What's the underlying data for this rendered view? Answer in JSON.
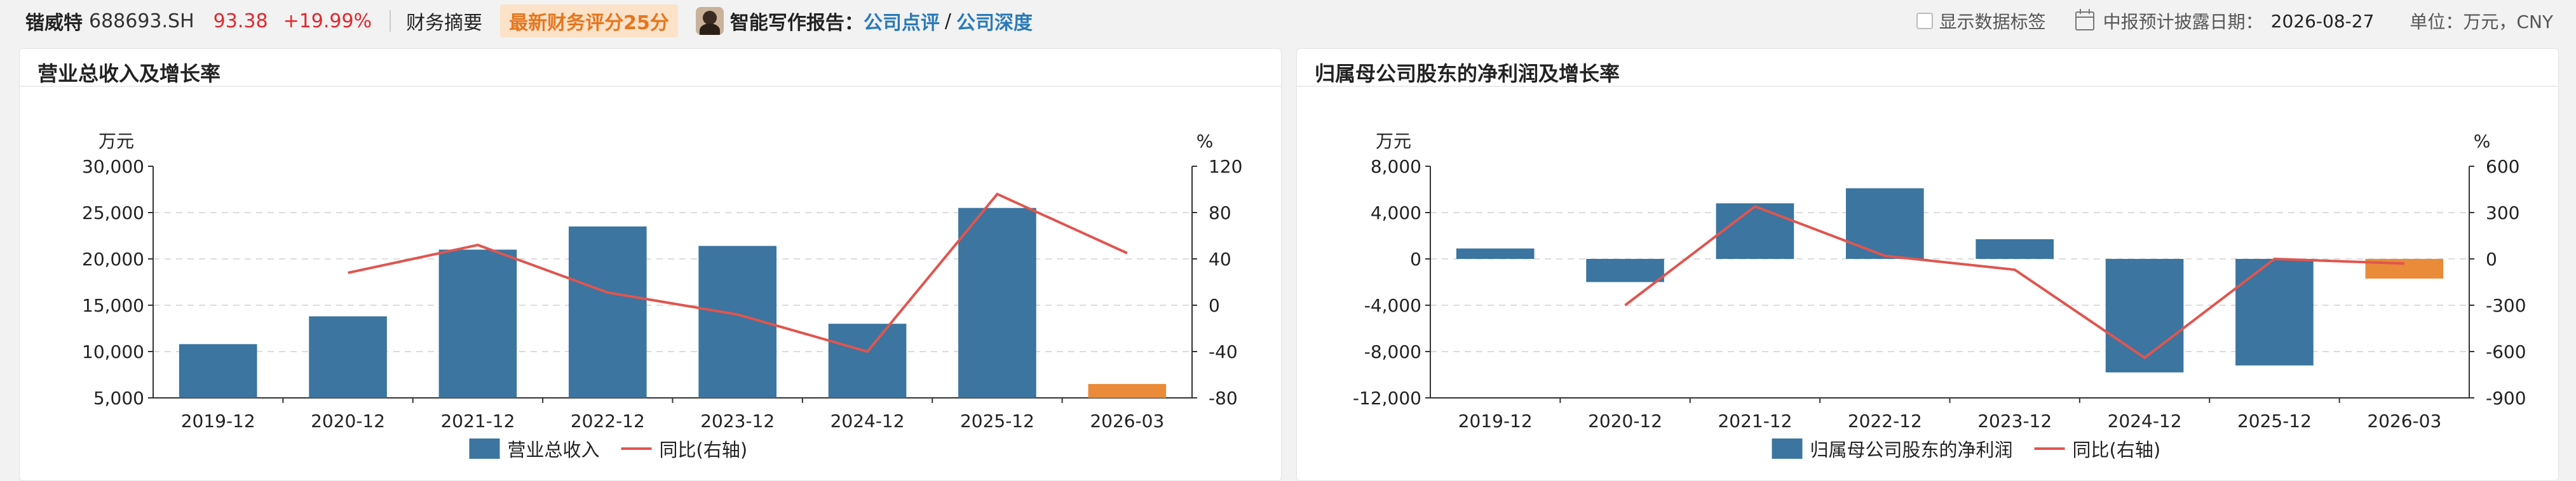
{
  "header": {
    "stock_name": "锴威特",
    "stock_code": "688693.SH",
    "price": "93.38",
    "change_pct": "+19.99%",
    "summary_label": "财务摘要",
    "score_badge": "最新财务评分25分",
    "report_label": "智能写作报告：",
    "link_review": "公司点评",
    "link_sep": "/",
    "link_depth": "公司深度",
    "show_labels": "显示数据标签",
    "disclosure_label": "中报预计披露日期：",
    "disclosure_date": "2026-08-27",
    "unit_label": "单位：万元，CNY"
  },
  "colors": {
    "bar": "#3b75a0",
    "bar_latest": "#e98b38",
    "line": "#e0554f",
    "price_up": "#e0282e"
  },
  "chart_data": [
    {
      "type": "bar",
      "title": "营业总收入及增长率",
      "categories": [
        "2019-12",
        "2020-12",
        "2021-12",
        "2022-12",
        "2023-12",
        "2024-12",
        "2025-12",
        "2026-03"
      ],
      "series": [
        {
          "name": "营业总收入",
          "axis": "left",
          "values": [
            10800,
            13800,
            21000,
            23500,
            21400,
            13000,
            25500,
            6500
          ]
        },
        {
          "name": "同比(右轴)",
          "axis": "right",
          "type": "line",
          "values": [
            null,
            28,
            52,
            11,
            -8,
            -40,
            96,
            45
          ]
        }
      ],
      "ylabel_left": "万元",
      "ylabel_right": "%",
      "ylim_left": [
        5000,
        30000
      ],
      "yticks_left": [
        "5,000",
        "10,000",
        "15,000",
        "20,000",
        "25,000",
        "30,000"
      ],
      "ylim_right": [
        -80,
        120
      ],
      "yticks_right": [
        "-80",
        "-40",
        "0",
        "40",
        "80",
        "120"
      ],
      "grid": true,
      "legend": "bottom"
    },
    {
      "type": "bar",
      "title": "归属母公司股东的净利润及增长率",
      "categories": [
        "2019-12",
        "2020-12",
        "2021-12",
        "2022-12",
        "2023-12",
        "2024-12",
        "2025-12",
        "2026-03"
      ],
      "series": [
        {
          "name": "归属母公司股东的净利润",
          "axis": "left",
          "values": [
            900,
            -2000,
            4800,
            6100,
            1700,
            -9800,
            -9200,
            -1700
          ]
        },
        {
          "name": "同比(右轴)",
          "axis": "right",
          "type": "line",
          "values": [
            null,
            -300,
            340,
            20,
            -70,
            -640,
            0,
            -30
          ]
        }
      ],
      "ylabel_left": "万元",
      "ylabel_right": "%",
      "ylim_left": [
        -12000,
        8000
      ],
      "yticks_left": [
        "-12,000",
        "-8,000",
        "-4,000",
        "0",
        "4,000",
        "8,000"
      ],
      "ylim_right": [
        -900,
        600
      ],
      "yticks_right": [
        "-900",
        "-600",
        "-300",
        "0",
        "300",
        "600"
      ],
      "grid": true,
      "legend": "bottom"
    }
  ]
}
